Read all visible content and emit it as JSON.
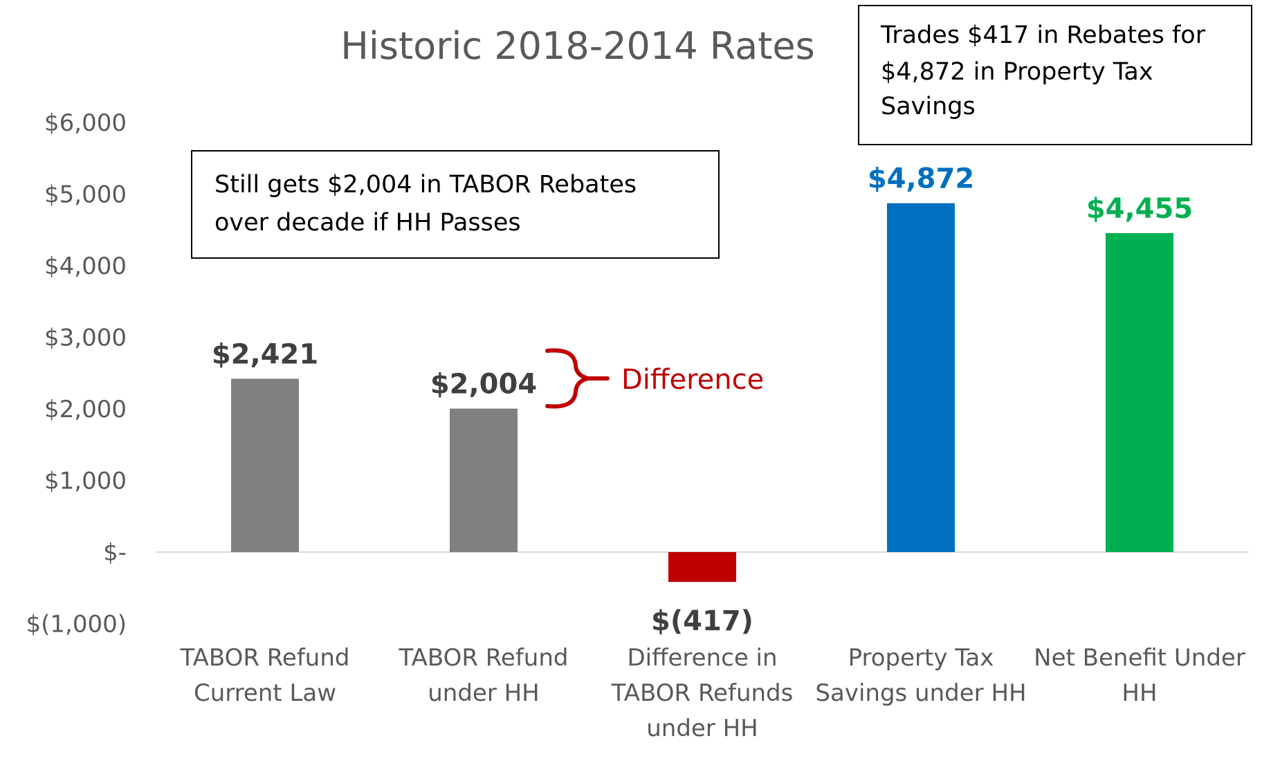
{
  "chart_data": {
    "type": "bar",
    "title": "Historic 2018-2014 Rates",
    "xlabel": "",
    "ylabel": "",
    "ylim": [
      -1000,
      6000
    ],
    "yticks": [
      -1000,
      0,
      1000,
      2000,
      3000,
      4000,
      5000,
      6000
    ],
    "ytick_labels": [
      "$(1,000)",
      "$-",
      "$1,000",
      "$2,000",
      "$3,000",
      "$4,000",
      "$5,000",
      "$6,000"
    ],
    "grid": false,
    "legend": "none",
    "categories": [
      [
        "TABOR Refund",
        "Current Law"
      ],
      [
        "TABOR Refund",
        "under HH"
      ],
      [
        "Difference in",
        "TABOR Refunds",
        "under HH"
      ],
      [
        "Property Tax",
        "Savings under HH"
      ],
      [
        "Net Benefit Under",
        "HH"
      ]
    ],
    "values": [
      2421,
      2004,
      -417,
      4872,
      4455
    ],
    "data_labels": [
      "$2,421",
      "$2,004",
      "$(417)",
      "$4,872",
      "$4,455"
    ],
    "bar_colors": [
      "#808080",
      "#808080",
      "#C00000",
      "#0070C0",
      "#00B050"
    ],
    "label_colors": [
      "#404040",
      "#404040",
      "#404040",
      "#0070C0",
      "#00B050"
    ],
    "annotations": {
      "box1": [
        "Still gets $2,004 in TABOR Rebates",
        "over decade if HH Passes"
      ],
      "box2": [
        "Trades $417 in Rebates for",
        "$4,872 in Property Tax",
        "Savings"
      ],
      "difference_label": "Difference",
      "difference_color": "#C00000"
    }
  }
}
